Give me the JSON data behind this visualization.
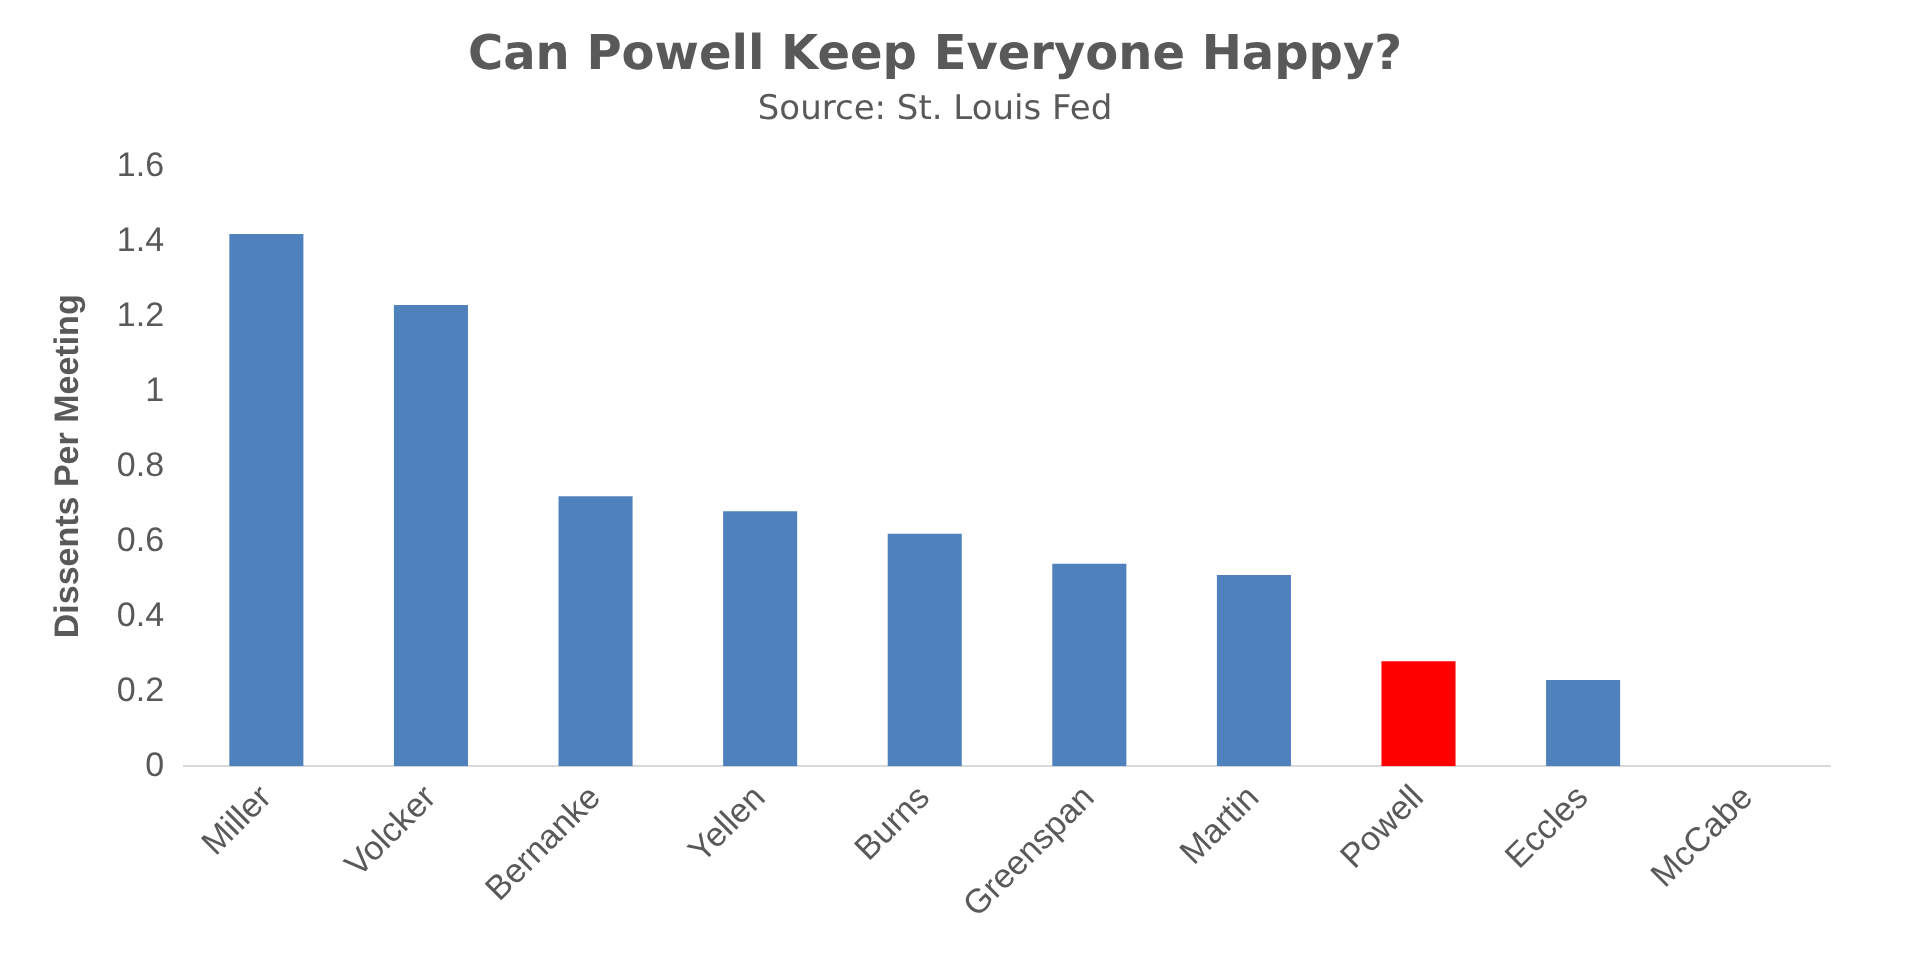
{
  "chart_data": {
    "type": "bar",
    "title": "Can Powell Keep Everyone Happy?",
    "subtitle": "Source: St. Louis Fed",
    "ylabel": "Dissents Per Meeting",
    "categories": [
      "Miller",
      "Volcker",
      "Bernanke",
      "Yellen",
      "Burns",
      "Greenspan",
      "Martin",
      "Powell",
      "Eccles",
      "McCabe"
    ],
    "values": [
      1.42,
      1.23,
      0.72,
      0.68,
      0.62,
      0.54,
      0.51,
      0.28,
      0.23,
      0
    ],
    "colors": [
      "#4f81bd",
      "#4f81bd",
      "#4f81bd",
      "#4f81bd",
      "#4f81bd",
      "#4f81bd",
      "#4f81bd",
      "#ff0000",
      "#4f81bd",
      "#4f81bd"
    ],
    "ylim": [
      0,
      1.6
    ],
    "yticks": [
      0,
      0.2,
      0.4,
      0.6,
      0.8,
      1,
      1.2,
      1.4,
      1.6
    ],
    "grid": false,
    "legend": false
  }
}
